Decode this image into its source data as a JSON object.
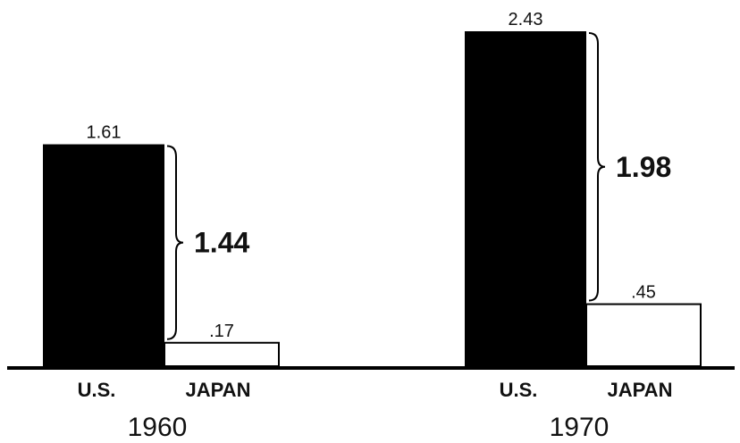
{
  "chart_data": {
    "type": "bar",
    "groups": [
      "1960",
      "1970"
    ],
    "categories": [
      "U.S.",
      "JAPAN"
    ],
    "series": [
      {
        "values": [
          1.61,
          0.17
        ]
      },
      {
        "values": [
          2.43,
          0.45
        ]
      }
    ],
    "value_labels": [
      [
        "1.61",
        ".17"
      ],
      [
        "2.43",
        ".45"
      ]
    ],
    "difference_labels": [
      "1.44",
      "1.98"
    ],
    "ylim": [
      0,
      2.43
    ],
    "colors": {
      "us": "#000000",
      "japan": "#ffffff"
    }
  }
}
